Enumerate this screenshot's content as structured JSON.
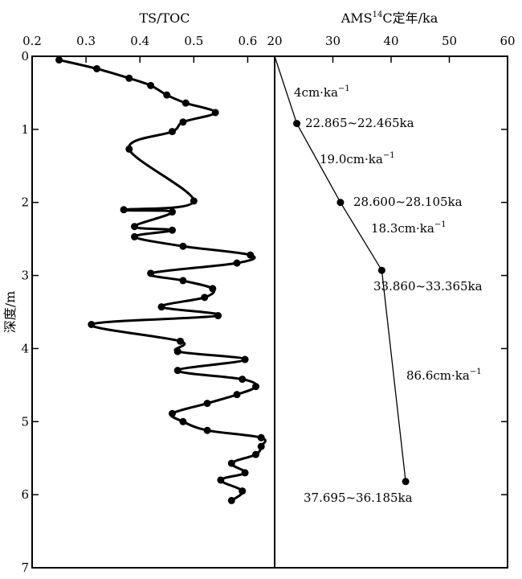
{
  "chart_data": [
    {
      "type": "line",
      "xlabel": "TS/TOC",
      "ylabel": "深度/m",
      "xlim": [
        0.2,
        0.65
      ],
      "ylim": [
        0,
        7
      ],
      "y_inverted": true,
      "x_ticks": [
        "0.2",
        "0.3",
        "0.4",
        "0.5",
        "0.6"
      ],
      "y_ticks": [
        "0",
        "1",
        "2",
        "3",
        "4",
        "5",
        "6",
        "7"
      ],
      "series": [
        {
          "points": [
            [
              0.25,
              0.05
            ],
            [
              0.32,
              0.17
            ],
            [
              0.38,
              0.3
            ],
            [
              0.42,
              0.4
            ],
            [
              0.45,
              0.53
            ],
            [
              0.485,
              0.64
            ],
            [
              0.54,
              0.77
            ],
            [
              0.48,
              0.9
            ],
            [
              0.46,
              1.03
            ],
            [
              0.38,
              1.27
            ],
            [
              0.5,
              1.98
            ],
            [
              0.37,
              2.1
            ],
            [
              0.46,
              2.13
            ],
            [
              0.39,
              2.33
            ],
            [
              0.46,
              2.38
            ],
            [
              0.39,
              2.47
            ],
            [
              0.48,
              2.6
            ],
            [
              0.605,
              2.72
            ],
            [
              0.58,
              2.83
            ],
            [
              0.42,
              2.97
            ],
            [
              0.48,
              3.07
            ],
            [
              0.535,
              3.18
            ],
            [
              0.52,
              3.3
            ],
            [
              0.44,
              3.43
            ],
            [
              0.545,
              3.55
            ],
            [
              0.31,
              3.67
            ],
            [
              0.475,
              3.9
            ],
            [
              0.47,
              4.04
            ],
            [
              0.595,
              4.15
            ],
            [
              0.47,
              4.3
            ],
            [
              0.59,
              4.42
            ],
            [
              0.615,
              4.52
            ],
            [
              0.58,
              4.63
            ],
            [
              0.525,
              4.75
            ],
            [
              0.46,
              4.89
            ],
            [
              0.48,
              5.0
            ],
            [
              0.525,
              5.12
            ],
            [
              0.625,
              5.22
            ],
            [
              0.625,
              5.34
            ],
            [
              0.615,
              5.45
            ],
            [
              0.57,
              5.57
            ],
            [
              0.595,
              5.7
            ],
            [
              0.55,
              5.8
            ],
            [
              0.59,
              5.95
            ],
            [
              0.57,
              6.08
            ]
          ]
        }
      ]
    },
    {
      "type": "line",
      "xlabel": "AMS¹⁴C定年/ka",
      "xlabel_main": "AMS",
      "xlabel_sup": "14",
      "xlabel_tail": "C定年/ka",
      "xlim": [
        20,
        60
      ],
      "ylim": [
        0,
        7
      ],
      "y_inverted": true,
      "x_ticks": [
        "20",
        "30",
        "40",
        "50",
        "60"
      ],
      "series": [
        {
          "points": [
            [
              20,
              0
            ],
            [
              23.8,
              0.92
            ],
            [
              31.3,
              2.0
            ],
            [
              38.4,
              2.93
            ],
            [
              42.5,
              5.82
            ]
          ]
        }
      ],
      "annotations": [
        {
          "base": "4cm·ka",
          "sup": "−1"
        },
        {
          "base": "22.865~22.465ka",
          "sup": ""
        },
        {
          "base": "19.0cm·ka",
          "sup": "−1"
        },
        {
          "base": "28.600~28.105ka",
          "sup": ""
        },
        {
          "base": "18.3cm·ka",
          "sup": "−1"
        },
        {
          "base": "33.860~33.365ka",
          "sup": ""
        },
        {
          "base": "86.6cm·ka",
          "sup": "−1"
        },
        {
          "base": "37.695~36.185ka",
          "sup": ""
        }
      ]
    }
  ]
}
